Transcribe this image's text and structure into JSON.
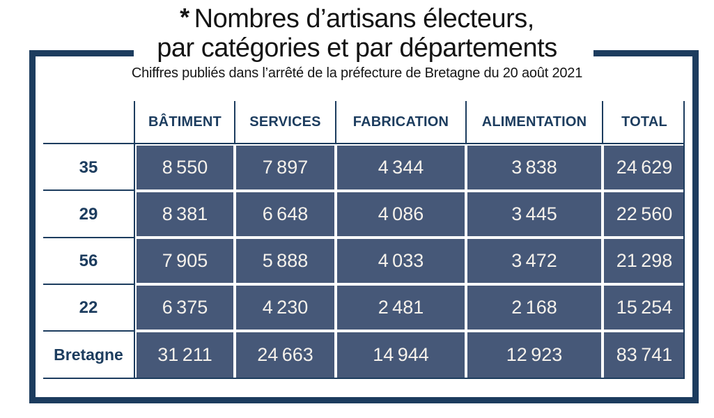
{
  "title": {
    "asterisk": "*",
    "line1": "Nombres d’artisans électeurs,",
    "line2": "par catégories et par départements"
  },
  "subtitle": "Chiffres publiés dans l’arrêté de la préfecture de Bretagne du 20 août 2021",
  "colors": {
    "navy": "#1c3c5e",
    "slate_cell": "#465878",
    "cell_text": "#f6f2ec",
    "title_text": "#141414"
  },
  "table": {
    "columns": [
      "BÂTIMENT",
      "SERVICES",
      "FABRICATION",
      "ALIMENTATION",
      "TOTAL"
    ],
    "rows": [
      {
        "label": "35",
        "values": [
          "8 550",
          "7 897",
          "4 344",
          "3 838",
          "24 629"
        ]
      },
      {
        "label": "29",
        "values": [
          "8 381",
          "6 648",
          "4 086",
          "3 445",
          "22 560"
        ]
      },
      {
        "label": "56",
        "values": [
          "7 905",
          "5 888",
          "4 033",
          "3 472",
          "21 298"
        ]
      },
      {
        "label": "22",
        "values": [
          "6 375",
          "4 230",
          "2 481",
          "2 168",
          "15 254"
        ]
      },
      {
        "label": "Bretagne",
        "values": [
          "31 211",
          "24 663",
          "14 944",
          "12 923",
          "83 741"
        ]
      }
    ]
  },
  "chart_data": {
    "type": "table",
    "title": "* Nombres d’artisans électeurs, par catégories et par départements",
    "subtitle": "Chiffres publiés dans l’arrêté de la préfecture de Bretagne du 20 août 2021",
    "columns": [
      "BÂTIMENT",
      "SERVICES",
      "FABRICATION",
      "ALIMENTATION",
      "TOTAL"
    ],
    "row_labels": [
      "35",
      "29",
      "56",
      "22",
      "Bretagne"
    ],
    "values": [
      [
        8550,
        7897,
        4344,
        3838,
        24629
      ],
      [
        8381,
        6648,
        4086,
        3445,
        22560
      ],
      [
        7905,
        5888,
        4033,
        3472,
        21298
      ],
      [
        6375,
        4230,
        2481,
        2168,
        15254
      ],
      [
        31211,
        24663,
        14944,
        12923,
        83741
      ]
    ]
  }
}
